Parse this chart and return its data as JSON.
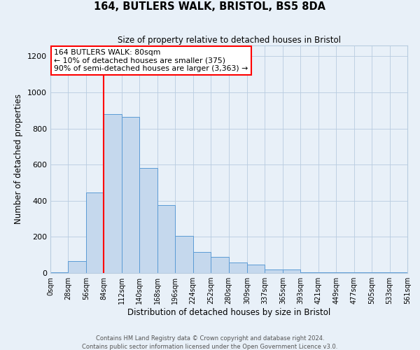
{
  "title": "164, BUTLERS WALK, BRISTOL, BS5 8DA",
  "subtitle": "Size of property relative to detached houses in Bristol",
  "xlabel": "Distribution of detached houses by size in Bristol",
  "ylabel": "Number of detached properties",
  "bar_color": "#c5d8ed",
  "bar_edge_color": "#5b9bd5",
  "background_color": "#e8f0f8",
  "grid_color": "#b8cce0",
  "vline_x": 84,
  "vline_color": "red",
  "annotation_title": "164 BUTLERS WALK: 80sqm",
  "annotation_line1": "← 10% of detached houses are smaller (375)",
  "annotation_line2": "90% of semi-detached houses are larger (3,363) →",
  "annotation_box_color": "#ffffff",
  "annotation_box_edge": "red",
  "bin_edges": [
    0,
    28,
    56,
    84,
    112,
    140,
    168,
    196,
    224,
    252,
    280,
    309,
    337,
    365,
    393,
    421,
    449,
    477,
    505,
    533,
    561
  ],
  "bin_labels": [
    "0sqm",
    "28sqm",
    "56sqm",
    "84sqm",
    "112sqm",
    "140sqm",
    "168sqm",
    "196sqm",
    "224sqm",
    "252sqm",
    "280sqm",
    "309sqm",
    "337sqm",
    "365sqm",
    "393sqm",
    "421sqm",
    "449sqm",
    "477sqm",
    "505sqm",
    "533sqm",
    "561sqm"
  ],
  "counts": [
    5,
    65,
    445,
    880,
    865,
    580,
    375,
    205,
    115,
    90,
    60,
    45,
    20,
    18,
    5,
    3,
    2,
    2,
    2,
    2
  ],
  "ylim": [
    0,
    1260
  ],
  "yticks": [
    0,
    200,
    400,
    600,
    800,
    1000,
    1200
  ],
  "footer1": "Contains HM Land Registry data © Crown copyright and database right 2024.",
  "footer2": "Contains public sector information licensed under the Open Government Licence v3.0."
}
